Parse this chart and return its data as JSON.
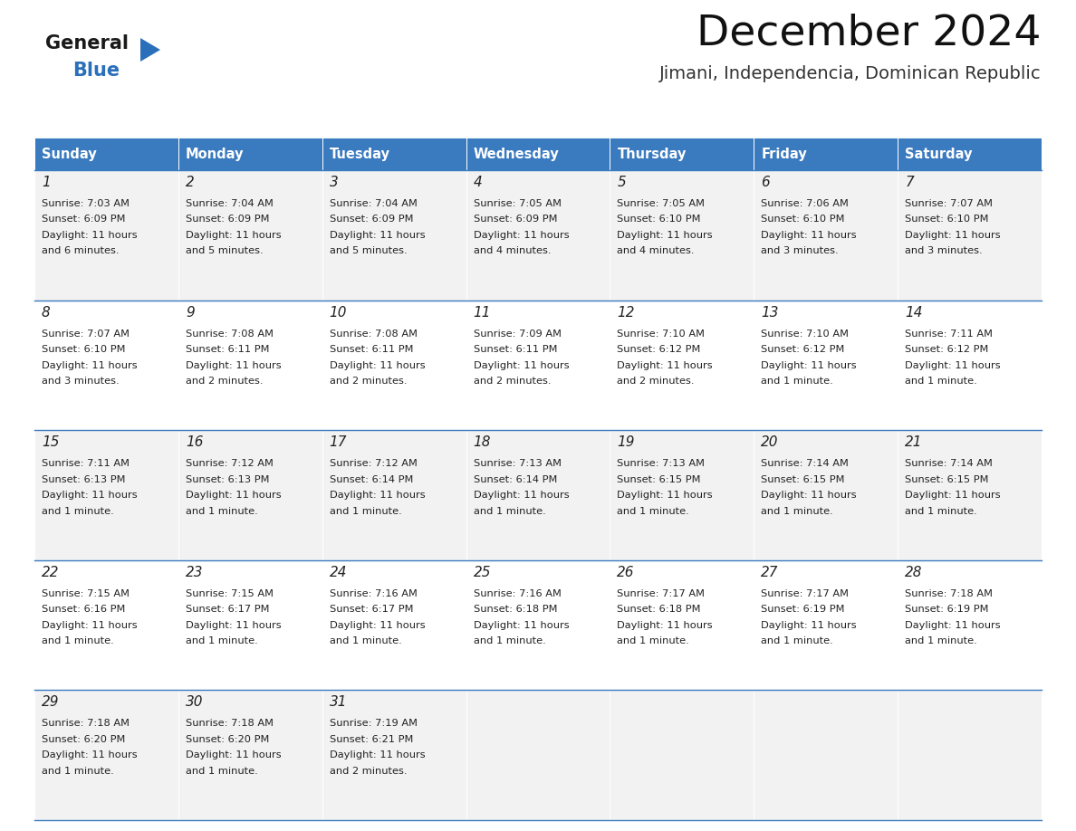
{
  "title": "December 2024",
  "subtitle": "Jimani, Independencia, Dominican Republic",
  "header_color": "#3a7abf",
  "header_text_color": "#ffffff",
  "cell_bg_even": "#f2f2f2",
  "cell_bg_odd": "#ffffff",
  "border_color": "#3a7abf",
  "text_color": "#333333",
  "day_headers": [
    "Sunday",
    "Monday",
    "Tuesday",
    "Wednesday",
    "Thursday",
    "Friday",
    "Saturday"
  ],
  "calendar_data": [
    [
      {
        "day": 1,
        "sunrise": "7:03 AM",
        "sunset": "6:09 PM",
        "daylight": "11 hours and 6 minutes."
      },
      {
        "day": 2,
        "sunrise": "7:04 AM",
        "sunset": "6:09 PM",
        "daylight": "11 hours and 5 minutes."
      },
      {
        "day": 3,
        "sunrise": "7:04 AM",
        "sunset": "6:09 PM",
        "daylight": "11 hours and 5 minutes."
      },
      {
        "day": 4,
        "sunrise": "7:05 AM",
        "sunset": "6:09 PM",
        "daylight": "11 hours and 4 minutes."
      },
      {
        "day": 5,
        "sunrise": "7:05 AM",
        "sunset": "6:10 PM",
        "daylight": "11 hours and 4 minutes."
      },
      {
        "day": 6,
        "sunrise": "7:06 AM",
        "sunset": "6:10 PM",
        "daylight": "11 hours and 3 minutes."
      },
      {
        "day": 7,
        "sunrise": "7:07 AM",
        "sunset": "6:10 PM",
        "daylight": "11 hours and 3 minutes."
      }
    ],
    [
      {
        "day": 8,
        "sunrise": "7:07 AM",
        "sunset": "6:10 PM",
        "daylight": "11 hours and 3 minutes."
      },
      {
        "day": 9,
        "sunrise": "7:08 AM",
        "sunset": "6:11 PM",
        "daylight": "11 hours and 2 minutes."
      },
      {
        "day": 10,
        "sunrise": "7:08 AM",
        "sunset": "6:11 PM",
        "daylight": "11 hours and 2 minutes."
      },
      {
        "day": 11,
        "sunrise": "7:09 AM",
        "sunset": "6:11 PM",
        "daylight": "11 hours and 2 minutes."
      },
      {
        "day": 12,
        "sunrise": "7:10 AM",
        "sunset": "6:12 PM",
        "daylight": "11 hours and 2 minutes."
      },
      {
        "day": 13,
        "sunrise": "7:10 AM",
        "sunset": "6:12 PM",
        "daylight": "11 hours and 1 minute."
      },
      {
        "day": 14,
        "sunrise": "7:11 AM",
        "sunset": "6:12 PM",
        "daylight": "11 hours and 1 minute."
      }
    ],
    [
      {
        "day": 15,
        "sunrise": "7:11 AM",
        "sunset": "6:13 PM",
        "daylight": "11 hours and 1 minute."
      },
      {
        "day": 16,
        "sunrise": "7:12 AM",
        "sunset": "6:13 PM",
        "daylight": "11 hours and 1 minute."
      },
      {
        "day": 17,
        "sunrise": "7:12 AM",
        "sunset": "6:14 PM",
        "daylight": "11 hours and 1 minute."
      },
      {
        "day": 18,
        "sunrise": "7:13 AM",
        "sunset": "6:14 PM",
        "daylight": "11 hours and 1 minute."
      },
      {
        "day": 19,
        "sunrise": "7:13 AM",
        "sunset": "6:15 PM",
        "daylight": "11 hours and 1 minute."
      },
      {
        "day": 20,
        "sunrise": "7:14 AM",
        "sunset": "6:15 PM",
        "daylight": "11 hours and 1 minute."
      },
      {
        "day": 21,
        "sunrise": "7:14 AM",
        "sunset": "6:15 PM",
        "daylight": "11 hours and 1 minute."
      }
    ],
    [
      {
        "day": 22,
        "sunrise": "7:15 AM",
        "sunset": "6:16 PM",
        "daylight": "11 hours and 1 minute."
      },
      {
        "day": 23,
        "sunrise": "7:15 AM",
        "sunset": "6:17 PM",
        "daylight": "11 hours and 1 minute."
      },
      {
        "day": 24,
        "sunrise": "7:16 AM",
        "sunset": "6:17 PM",
        "daylight": "11 hours and 1 minute."
      },
      {
        "day": 25,
        "sunrise": "7:16 AM",
        "sunset": "6:18 PM",
        "daylight": "11 hours and 1 minute."
      },
      {
        "day": 26,
        "sunrise": "7:17 AM",
        "sunset": "6:18 PM",
        "daylight": "11 hours and 1 minute."
      },
      {
        "day": 27,
        "sunrise": "7:17 AM",
        "sunset": "6:19 PM",
        "daylight": "11 hours and 1 minute."
      },
      {
        "day": 28,
        "sunrise": "7:18 AM",
        "sunset": "6:19 PM",
        "daylight": "11 hours and 1 minute."
      }
    ],
    [
      {
        "day": 29,
        "sunrise": "7:18 AM",
        "sunset": "6:20 PM",
        "daylight": "11 hours and 1 minute."
      },
      {
        "day": 30,
        "sunrise": "7:18 AM",
        "sunset": "6:20 PM",
        "daylight": "11 hours and 1 minute."
      },
      {
        "day": 31,
        "sunrise": "7:19 AM",
        "sunset": "6:21 PM",
        "daylight": "11 hours and 2 minutes."
      },
      null,
      null,
      null,
      null
    ]
  ],
  "logo_color_general": "#1a1a1a",
  "logo_color_blue": "#2a6fba",
  "logo_triangle_color": "#2a6fba",
  "fig_width": 11.88,
  "fig_height": 9.18,
  "dpi": 100
}
